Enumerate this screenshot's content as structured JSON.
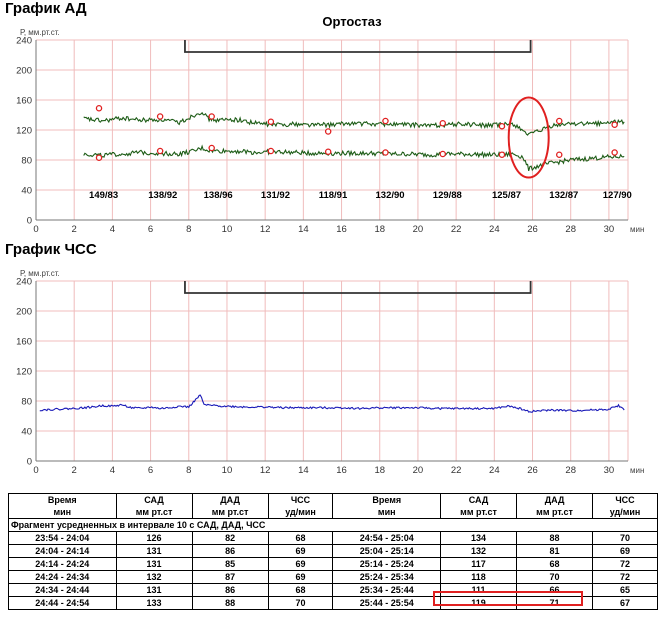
{
  "bp_chart": {
    "heading": "График АД",
    "title": "Ортостаз",
    "y_unit": "Р, мм.рт.ст.",
    "x_unit": "мин"
  },
  "hr_chart": {
    "heading": "График ЧСС",
    "y_unit": "Р, мм.рт.ст.",
    "x_unit": "мин"
  },
  "chart_data": [
    {
      "type": "line",
      "title": "Ортостаз",
      "ylabel": "Р, мм.рт.ст.",
      "xlabel": "мин",
      "xlim": [
        0,
        31
      ],
      "ylim": [
        0,
        240
      ],
      "x_ticks": [
        0,
        2,
        4,
        6,
        8,
        10,
        12,
        14,
        16,
        18,
        20,
        22,
        24,
        26,
        28,
        30
      ],
      "y_ticks": [
        0,
        40,
        80,
        120,
        160,
        200,
        240
      ],
      "grid": true,
      "orthostasis_interval": [
        7.8,
        25.9
      ],
      "series": [
        {
          "x": [
            2.5,
            3.5,
            4.5,
            5.5,
            6.5,
            7.5,
            8.3,
            8.7,
            9,
            9.5,
            10.5,
            11.5,
            12.5,
            13.5,
            14.5,
            15.5,
            16.5,
            17.5,
            18.5,
            19.5,
            20.5,
            21.5,
            22.5,
            23.5,
            24.5,
            25,
            25.5,
            25.8,
            26.3,
            27,
            28,
            29,
            30,
            30.8
          ],
          "values": [
            135,
            132,
            136,
            133,
            134,
            130,
            140,
            145,
            135,
            133,
            134,
            129,
            127,
            128,
            127,
            127,
            129,
            128,
            128,
            127,
            126,
            127,
            128,
            126,
            127,
            128,
            120,
            113,
            118,
            125,
            129,
            128,
            130,
            131
          ]
        },
        {
          "x": [
            2.5,
            3.5,
            4.5,
            5.5,
            6.5,
            7.5,
            8.3,
            8.7,
            9,
            9.5,
            10.5,
            11.5,
            12.5,
            13.5,
            14.5,
            15.5,
            16.5,
            17.5,
            18.5,
            19.5,
            20.5,
            21.5,
            22.5,
            23.5,
            24.5,
            25,
            25.5,
            25.8,
            26.3,
            27,
            28,
            29,
            30,
            30.8
          ],
          "values": [
            88,
            86,
            88,
            90,
            89,
            88,
            92,
            96,
            93,
            92,
            92,
            90,
            91,
            90,
            89,
            89,
            89,
            89,
            88,
            88,
            87,
            88,
            88,
            87,
            87,
            88,
            84,
            68,
            72,
            76,
            80,
            82,
            84,
            85
          ]
        }
      ],
      "markers": {
        "x": [
          3.3,
          6.5,
          9.2,
          12.3,
          15.3,
          18.3,
          21.3,
          24.4,
          27.4,
          30.3
        ],
        "sbp": [
          149,
          138,
          138,
          131,
          118,
          132,
          129,
          125,
          132,
          127
        ],
        "dbp": [
          83,
          92,
          96,
          92,
          91,
          90,
          88,
          87,
          87,
          90
        ]
      },
      "annotations": [
        "149/83",
        "138/92",
        "138/96",
        "131/92",
        "118/91",
        "132/90",
        "129/88",
        "125/87",
        "132/87",
        "127/90"
      ]
    },
    {
      "type": "line",
      "ylabel": "Р, мм.рт.ст.",
      "xlabel": "мин",
      "xlim": [
        0,
        31
      ],
      "ylim": [
        0,
        240
      ],
      "x_ticks": [
        0,
        2,
        4,
        6,
        8,
        10,
        12,
        14,
        16,
        18,
        20,
        22,
        24,
        26,
        28,
        30
      ],
      "y_ticks": [
        0,
        40,
        80,
        120,
        160,
        200,
        240
      ],
      "grid": true,
      "orthostasis_interval": [
        7.8,
        25.9
      ],
      "series": [
        {
          "x": [
            0.2,
            1,
            2,
            3,
            3.5,
            4,
            4.5,
            5,
            5.5,
            6,
            6.5,
            7,
            7.5,
            8,
            8.3,
            8.6,
            8.8,
            9.2,
            10,
            11,
            12,
            13,
            14,
            15,
            16,
            17,
            18,
            19,
            20,
            21,
            22,
            23,
            24,
            24.7,
            25.2,
            25.8,
            26.5,
            27,
            28,
            29,
            30,
            30.5,
            30.8
          ],
          "values": [
            68,
            69,
            70,
            72,
            74,
            73,
            75,
            71,
            70,
            72,
            70,
            71,
            73,
            72,
            80,
            88,
            75,
            74,
            73,
            72,
            72,
            71,
            71,
            71,
            71,
            70,
            71,
            71,
            71,
            70,
            70,
            70,
            70,
            73,
            71,
            66,
            67,
            68,
            67,
            68,
            69,
            74,
            68
          ]
        }
      ]
    }
  ],
  "table": {
    "headers": [
      {
        "top": "Время",
        "bottom": "мин"
      },
      {
        "top": "САД",
        "bottom": "мм рт.ст"
      },
      {
        "top": "ДАД",
        "bottom": "мм рт.ст"
      },
      {
        "top": "ЧСС",
        "bottom": "уд/мин"
      },
      {
        "top": "Время",
        "bottom": "мин"
      },
      {
        "top": "САД",
        "bottom": "мм рт.ст"
      },
      {
        "top": "ДАД",
        "bottom": "мм рт.ст"
      },
      {
        "top": "ЧСС",
        "bottom": "уд/мин"
      }
    ],
    "fragment_label": "Фрагмент усредненных в интервале 10 с САД, ДАД, ЧСС",
    "rows": [
      [
        "23:54 - 24:04",
        "126",
        "82",
        "68",
        "24:54 - 25:04",
        "134",
        "88",
        "70"
      ],
      [
        "24:04 - 24:14",
        "131",
        "86",
        "69",
        "25:04 - 25:14",
        "132",
        "81",
        "69"
      ],
      [
        "24:14 - 24:24",
        "131",
        "85",
        "69",
        "25:14 - 25:24",
        "117",
        "68",
        "72"
      ],
      [
        "24:24 - 24:34",
        "132",
        "87",
        "69",
        "25:24 - 25:34",
        "118",
        "70",
        "72"
      ],
      [
        "24:34 - 24:44",
        "131",
        "86",
        "68",
        "25:34 - 25:44",
        "111",
        "66",
        "65"
      ],
      [
        "24:44 - 24:54",
        "133",
        "88",
        "70",
        "25:44 - 25:54",
        "119",
        "71",
        "67"
      ]
    ],
    "highlighted_row": 4
  },
  "colors": {
    "bp_line": "#1d5c16",
    "hr_line": "#1a1ab8",
    "grid": "#f0bcbc",
    "marker": "#e02020",
    "highlight": "#e02020",
    "bracket": "#333333"
  }
}
